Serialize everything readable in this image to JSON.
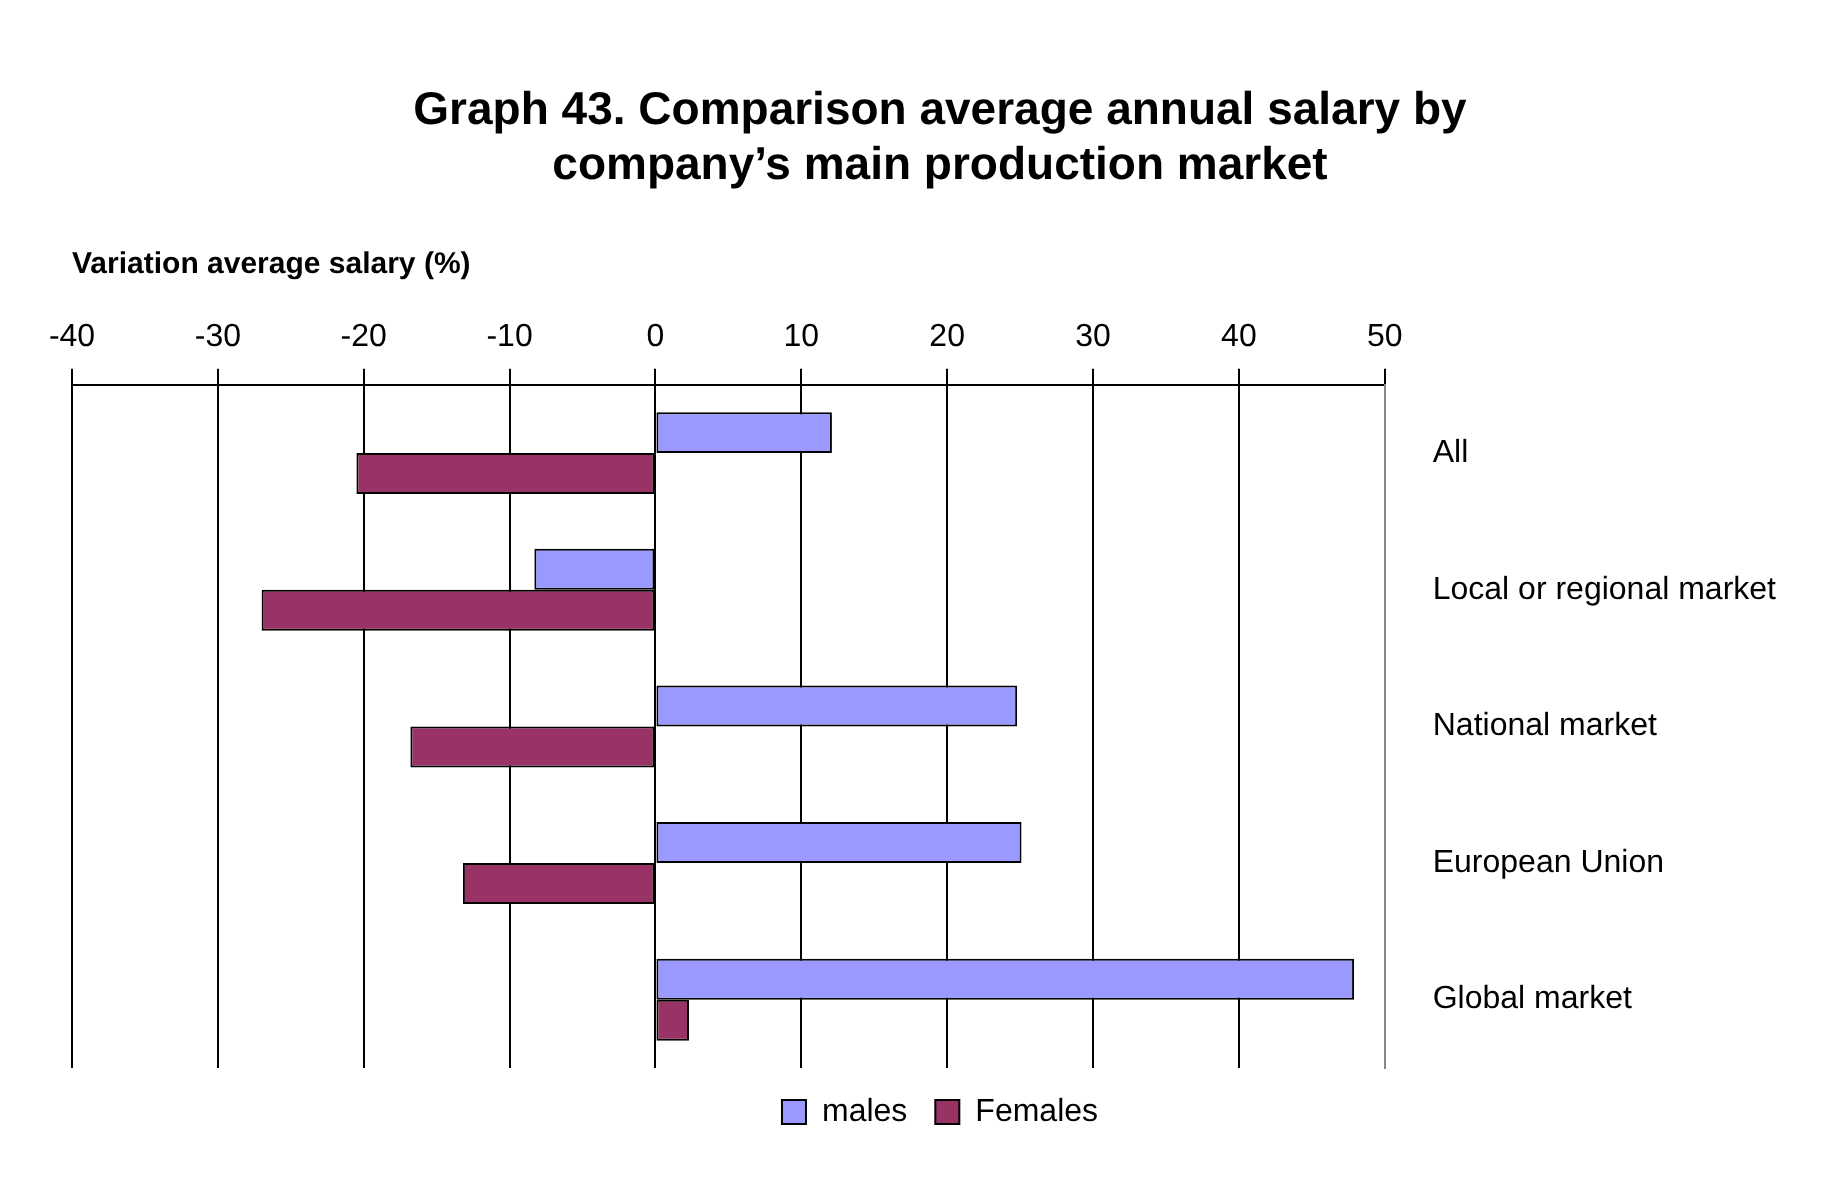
{
  "chart_data": {
    "type": "bar",
    "orientation": "horizontal",
    "title": "Graph 43. Comparison average annual salary by company’s main production market",
    "xlabel": "Variation average salary (%)",
    "categories": [
      "All",
      "Local or regional market",
      "National market",
      "European Union",
      "Global market"
    ],
    "series": [
      {
        "name": "males",
        "color": "#9999ff",
        "values": [
          12.1,
          -8.3,
          24.8,
          25.1,
          47.9
        ]
      },
      {
        "name": "Females",
        "color": "#993366",
        "values": [
          -20.5,
          -27.0,
          -16.8,
          -13.2,
          2.3
        ]
      }
    ],
    "xlim": [
      -40,
      50
    ],
    "xticks": [
      -40,
      -30,
      -20,
      -10,
      0,
      10,
      20,
      30,
      40,
      50
    ],
    "grid": "x",
    "legend": "bottom"
  }
}
